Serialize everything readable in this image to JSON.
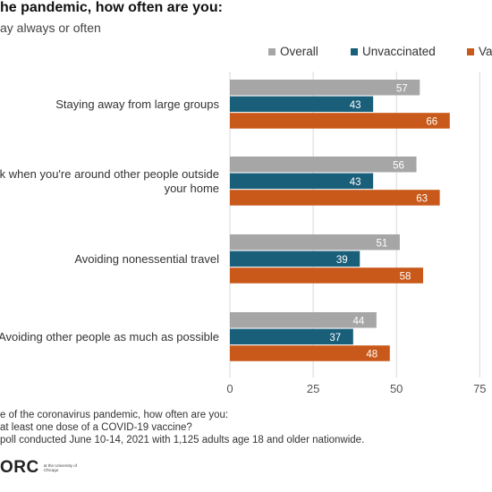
{
  "header": {
    "title": "he pandemic, how often are you:",
    "subtitle": "ay always or often"
  },
  "footnotes": {
    "line1": "e of the coronavirus pandemic, how often are you:",
    "line2": "at least one dose of a COVID-19 vaccine?",
    "line3": "poll conducted June 10-14, 2021 with 1,125 adults age 18 and older nationwide."
  },
  "logo": {
    "text": "ORC",
    "small": "at the University of Chicago"
  },
  "colors": {
    "overall": "#a6a6a6",
    "unvaccinated": "#1a5f7a",
    "vaccinated": "#c8591a",
    "grid": "#d9d9d9",
    "axis_text": "#555555"
  },
  "chart_data": {
    "type": "bar",
    "orientation": "horizontal",
    "categories": [
      [
        "Staying away from large groups"
      ],
      [
        "ask when you're around other people outside",
        "your home"
      ],
      [
        "Avoiding nonessential travel"
      ],
      [
        "Avoiding other people as much as possible"
      ]
    ],
    "series": [
      {
        "name": "Overall",
        "values": [
          57,
          56,
          51,
          44
        ]
      },
      {
        "name": "Unvaccinated",
        "values": [
          43,
          43,
          39,
          37
        ]
      },
      {
        "name": "Va",
        "values": [
          66,
          63,
          58,
          48
        ]
      }
    ],
    "xlim": [
      0,
      75
    ],
    "xticks": [
      "0",
      "25",
      "50",
      "75"
    ],
    "grid": true,
    "legend_position": "top-right",
    "data_labels": true
  }
}
